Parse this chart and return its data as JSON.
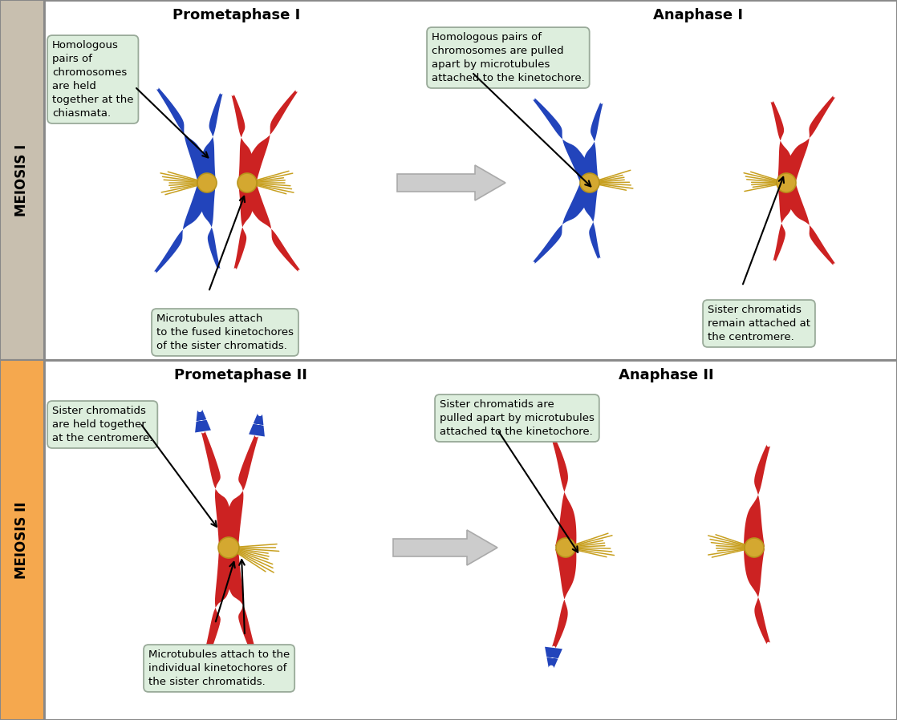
{
  "sidebar_top_color": "#c8bfaf",
  "sidebar_bottom_color": "#f5a84e",
  "sidebar_top_text": "MEIOSIS I",
  "sidebar_bottom_text": "MEIOSIS II",
  "blue_chr": "#2244bb",
  "red_chr": "#cc2222",
  "centromere_color": "#d4a830",
  "microtubule_color": "#c8a020",
  "label_bg": "#ddeedd",
  "label_border": "#99aa99",
  "title_top_left": "Prometaphase I",
  "title_top_right": "Anaphase I",
  "title_bottom_left": "Prometaphase II",
  "title_bottom_right": "Anaphase II",
  "label1": "Homologous\npairs of\nchromosomes\nare held\ntogether at the\nchiasmata.",
  "label2": "Microtubules attach\nto the fused kinetochores\nof the sister chromatids.",
  "label3": "Homologous pairs of\nchromosomes are pulled\napart by microtubules\nattached to the kinetochore.",
  "label4": "Sister chromatids\nremain attached at\nthe centromere.",
  "label5": "Sister chromatids\nare held together\nat the centromere.",
  "label6": "Microtubules attach to the\nindividual kinetochores of\nthe sister chromatids.",
  "label7": "Sister chromatids are\npulled apart by microtubules\nattached to the kinetochore.",
  "divider_color": "#888888",
  "border_color": "#888888"
}
